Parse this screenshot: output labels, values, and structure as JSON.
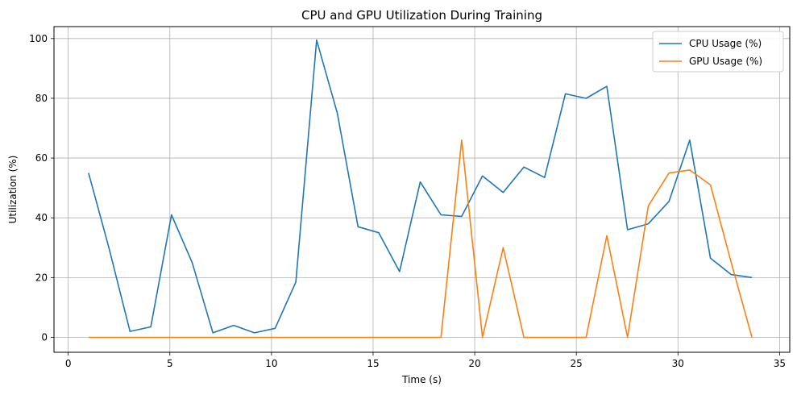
{
  "chart_data": {
    "type": "line",
    "title": "CPU and GPU Utilization During Training",
    "xlabel": "Time (s)",
    "ylabel": "Utilization (%)",
    "xlim": [
      -0.7,
      35.5
    ],
    "ylim": [
      -5,
      104
    ],
    "xticks": [
      0,
      5,
      10,
      15,
      20,
      25,
      30,
      35
    ],
    "yticks": [
      0,
      20,
      40,
      60,
      80,
      100
    ],
    "xtick_labels": [
      "0",
      "5",
      "10",
      "15",
      "20",
      "25",
      "30",
      "35"
    ],
    "ytick_labels": [
      "0",
      "20",
      "40",
      "60",
      "80",
      "100"
    ],
    "grid": true,
    "legend_position": "top-right",
    "x": [
      1.0,
      2.02,
      3.04,
      4.06,
      5.08,
      6.1,
      7.12,
      8.14,
      9.16,
      10.18,
      11.2,
      12.22,
      13.24,
      14.26,
      15.28,
      16.3,
      17.32,
      18.34,
      19.36,
      20.38,
      21.4,
      22.42,
      23.44,
      24.46,
      25.48,
      26.5,
      27.52,
      28.54,
      29.56,
      30.58,
      31.6,
      32.62,
      33.64
    ],
    "series": [
      {
        "name": "CPU Usage (%)",
        "color": "#1f77b4",
        "values": [
          55.0,
          29.5,
          2.0,
          3.5,
          41.0,
          25.0,
          1.5,
          4.0,
          1.5,
          3.0,
          18.5,
          99.5,
          75.0,
          37.0,
          35.0,
          22.0,
          52.0,
          41.0,
          40.5,
          54.0,
          48.5,
          57.0,
          53.5,
          81.5,
          80.0,
          84.0,
          36.0,
          38.0,
          45.5,
          66.0,
          26.5,
          21.0,
          20.0
        ]
      },
      {
        "name": "GPU Usage (%)",
        "color": "#ff7f0e",
        "values": [
          0,
          0,
          0,
          0,
          0,
          0,
          0,
          0,
          0,
          0,
          0,
          0,
          0,
          0,
          0,
          0,
          0,
          0,
          66.0,
          0,
          30.0,
          0,
          0,
          0,
          0,
          34.0,
          0,
          44.0,
          55.0,
          56.0,
          51.0,
          25.0,
          0
        ]
      }
    ]
  }
}
